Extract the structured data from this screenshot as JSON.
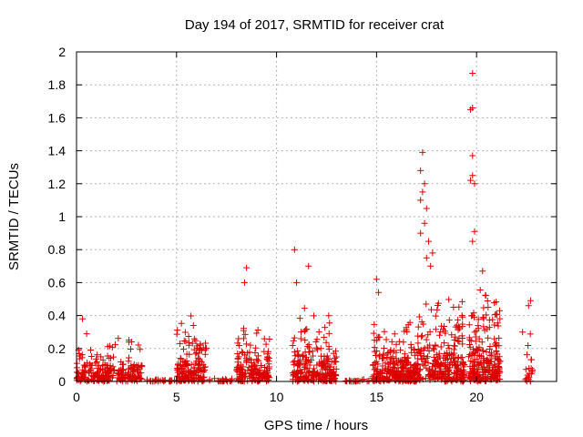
{
  "chart_data": {
    "type": "scatter",
    "title": "Day 194 of 2017, SRMTID for receiver crat",
    "xlabel": "GPS time / hours",
    "ylabel": "SRMTID / TECUs",
    "xlim": [
      0,
      24
    ],
    "ylim": [
      0,
      2
    ],
    "xticks": [
      0,
      5,
      10,
      15,
      20
    ],
    "yticks": [
      0,
      0.2,
      0.4,
      0.6,
      0.8,
      1,
      1.2,
      1.4,
      1.6,
      1.8,
      2
    ],
    "xtick_labels": [
      "0",
      "5",
      "10",
      "15",
      "20"
    ],
    "ytick_labels": [
      "0",
      "0.2",
      "0.4",
      "0.6",
      "0.8",
      "1",
      "1.2",
      "1.4",
      "1.6",
      "1.8",
      "2"
    ],
    "grid": true,
    "marker": "+",
    "series": [
      {
        "name": "SRMTID",
        "color": "#dd0000",
        "clusters": [
          {
            "range": [
              0.0,
              3.3
            ],
            "count": 260,
            "scale": 0.06,
            "max": 0.3
          },
          {
            "range": [
              3.5,
              4.9
            ],
            "count": 25,
            "scale": 0.005,
            "max": 0.02
          },
          {
            "range": [
              5.0,
              6.5
            ],
            "count": 160,
            "scale": 0.09,
            "max": 0.42
          },
          {
            "range": [
              6.6,
              7.8
            ],
            "count": 20,
            "scale": 0.005,
            "max": 0.02
          },
          {
            "range": [
              8.0,
              9.7
            ],
            "count": 170,
            "scale": 0.09,
            "max": 0.45
          },
          {
            "range": [
              10.8,
              13.0
            ],
            "count": 240,
            "scale": 0.09,
            "max": 0.45
          },
          {
            "range": [
              13.2,
              14.7
            ],
            "count": 20,
            "scale": 0.005,
            "max": 0.02
          },
          {
            "range": [
              14.8,
              17.0
            ],
            "count": 300,
            "scale": 0.08,
            "max": 0.45
          },
          {
            "range": [
              17.0,
              19.4
            ],
            "count": 280,
            "scale": 0.14,
            "max": 0.5
          },
          {
            "range": [
              19.6,
              21.2
            ],
            "count": 230,
            "scale": 0.14,
            "max": 0.6
          },
          {
            "range": [
              22.4,
              22.8
            ],
            "count": 22,
            "scale": 0.08,
            "max": 0.35
          }
        ],
        "highlights": [
          {
            "x": 0.3,
            "y": 0.38
          },
          {
            "x": 8.5,
            "y": 0.69
          },
          {
            "x": 8.4,
            "y": 0.6
          },
          {
            "x": 10.9,
            "y": 0.8
          },
          {
            "x": 11.6,
            "y": 0.7
          },
          {
            "x": 11.0,
            "y": 0.6
          },
          {
            "x": 15.0,
            "y": 0.62
          },
          {
            "x": 15.1,
            "y": 0.54
          },
          {
            "x": 17.3,
            "y": 1.39
          },
          {
            "x": 17.2,
            "y": 1.28
          },
          {
            "x": 17.4,
            "y": 1.2
          },
          {
            "x": 17.3,
            "y": 1.15
          },
          {
            "x": 17.2,
            "y": 1.1
          },
          {
            "x": 17.5,
            "y": 1.05
          },
          {
            "x": 17.4,
            "y": 0.96
          },
          {
            "x": 17.2,
            "y": 0.9
          },
          {
            "x": 17.6,
            "y": 0.85
          },
          {
            "x": 17.8,
            "y": 0.78
          },
          {
            "x": 17.5,
            "y": 0.75
          },
          {
            "x": 17.7,
            "y": 0.7
          },
          {
            "x": 19.8,
            "y": 1.87
          },
          {
            "x": 19.8,
            "y": 1.66
          },
          {
            "x": 19.7,
            "y": 1.65
          },
          {
            "x": 19.8,
            "y": 1.37
          },
          {
            "x": 19.8,
            "y": 1.25
          },
          {
            "x": 19.7,
            "y": 1.22
          },
          {
            "x": 19.9,
            "y": 1.2
          },
          {
            "x": 19.9,
            "y": 0.91
          },
          {
            "x": 19.8,
            "y": 0.85
          },
          {
            "x": 20.3,
            "y": 0.67
          },
          {
            "x": 22.7,
            "y": 0.49
          },
          {
            "x": 22.6,
            "y": 0.46
          },
          {
            "x": 22.3,
            "y": 0.3
          }
        ]
      }
    ]
  }
}
